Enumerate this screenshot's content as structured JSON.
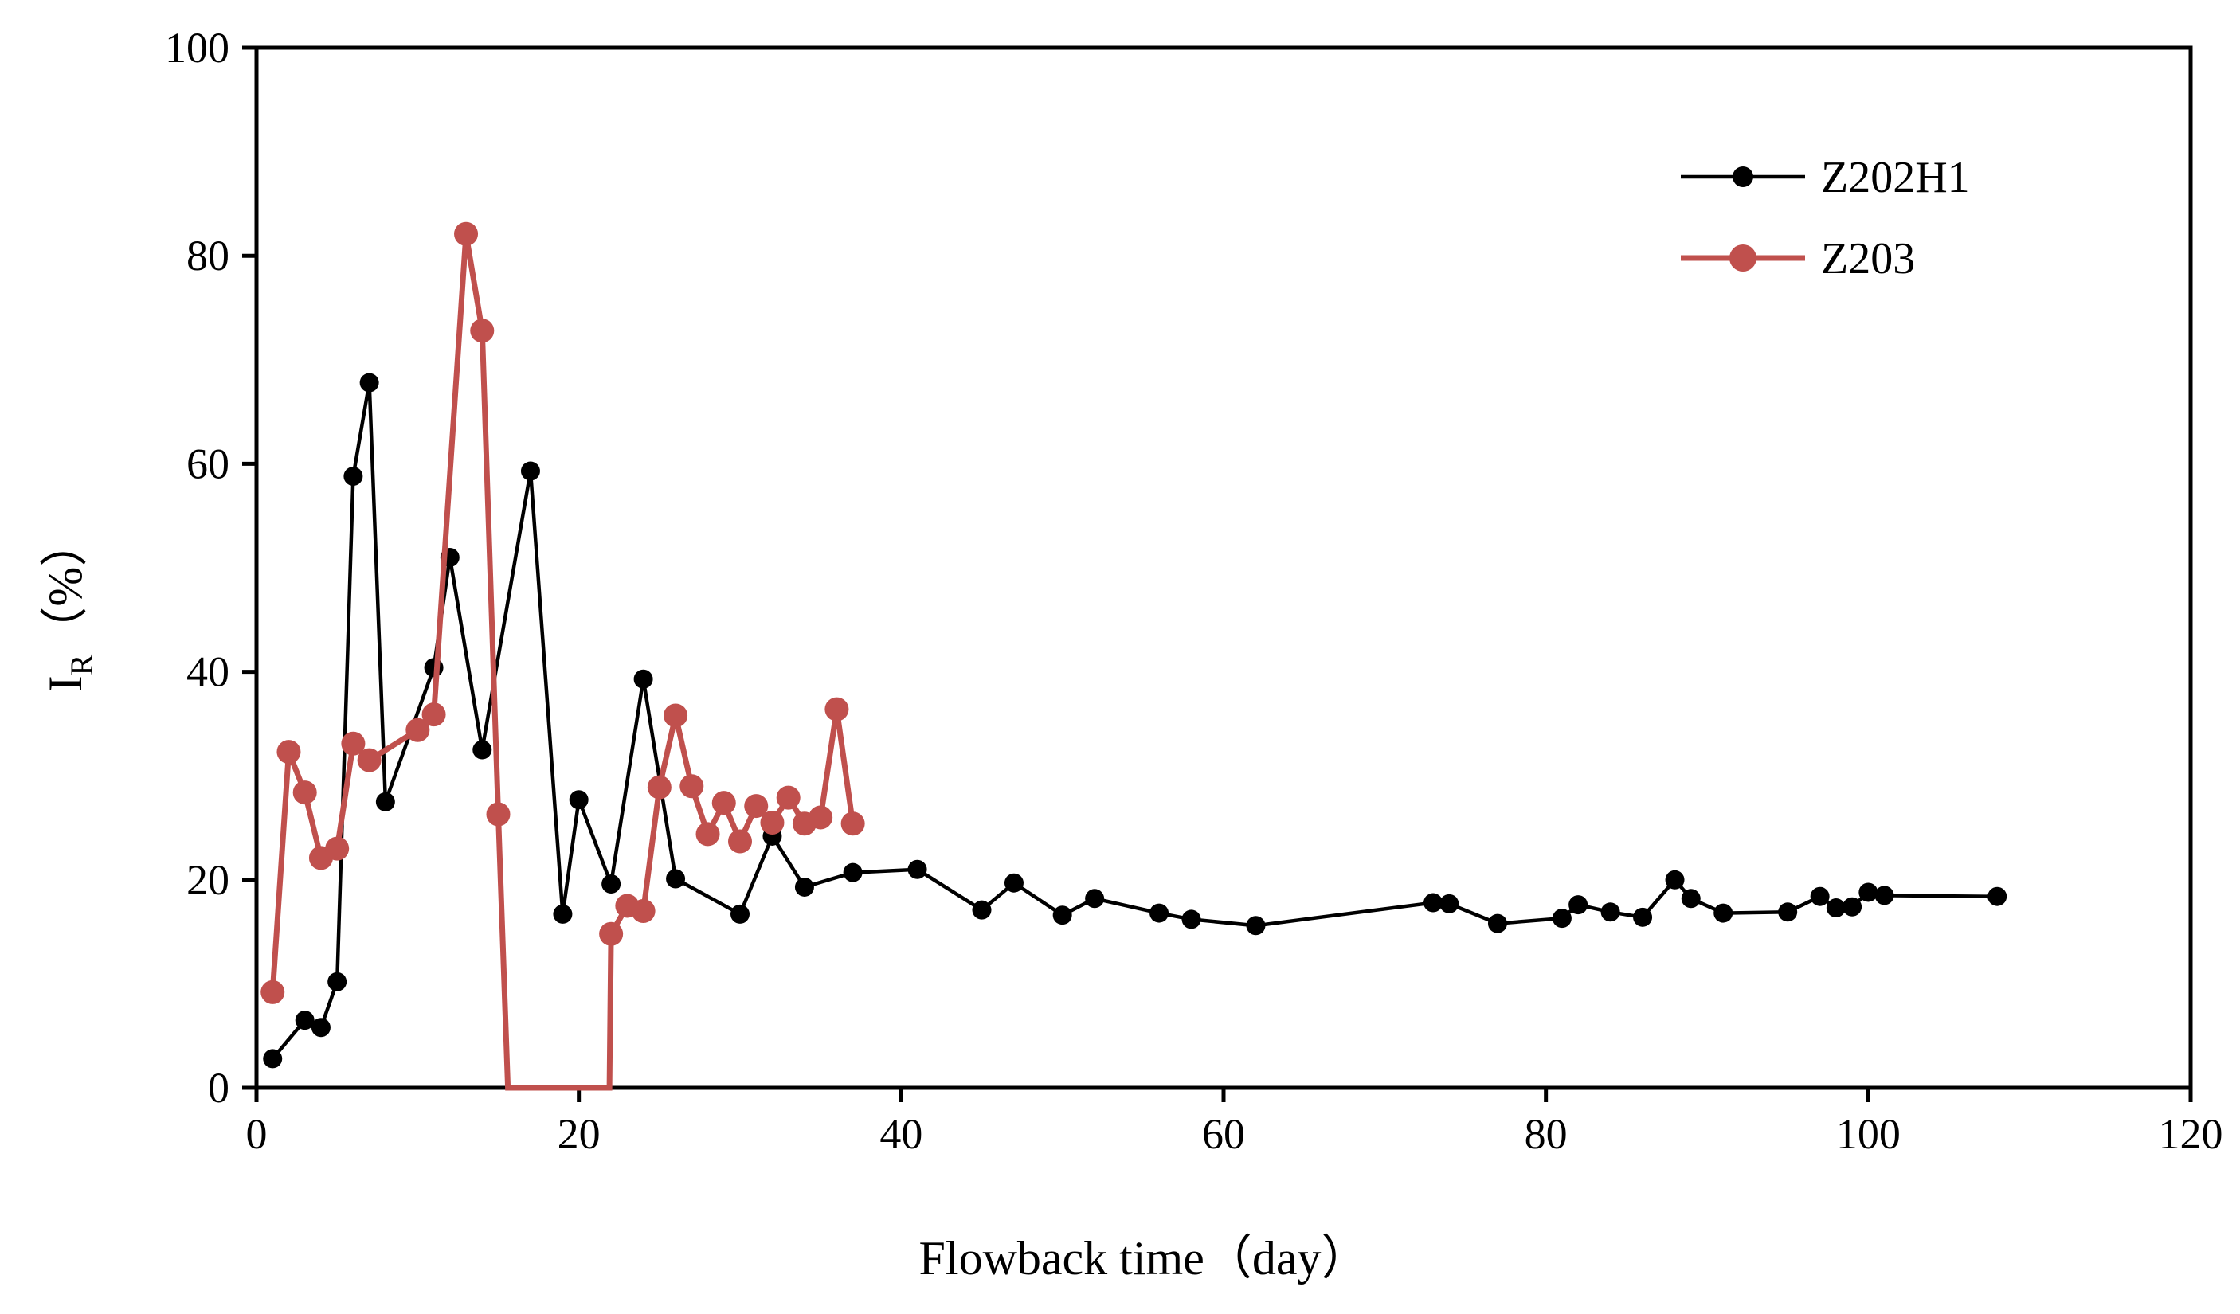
{
  "chart_data": {
    "type": "line",
    "title": "",
    "xlabel": "Flowback time（day）",
    "ylabel_main": "I",
    "ylabel_sub": "R",
    "ylabel_unit": "（%）",
    "xlim": [
      0,
      120
    ],
    "ylim": [
      0,
      100
    ],
    "xticks": [
      0,
      20,
      40,
      60,
      80,
      100,
      120
    ],
    "yticks": [
      0,
      20,
      40,
      60,
      80,
      100
    ],
    "grid": false,
    "legend_position": "top-right",
    "series": [
      {
        "name": "Z202H1",
        "color": "#000000",
        "marker": "circle-small",
        "x": [
          1,
          3,
          4,
          5,
          6,
          7,
          8,
          11,
          12,
          14,
          17,
          19,
          20,
          22,
          24,
          26,
          30,
          32,
          34,
          37,
          41,
          45,
          47,
          50,
          52,
          56,
          58,
          62,
          73,
          74,
          77,
          81,
          82,
          84,
          86,
          88,
          89,
          91,
          95,
          97,
          98,
          99,
          100,
          101,
          108
        ],
        "y": [
          2.8,
          6.5,
          5.8,
          10.2,
          58.8,
          67.8,
          27.5,
          40.4,
          51.0,
          32.5,
          59.3,
          16.7,
          27.7,
          19.6,
          39.3,
          20.1,
          16.7,
          24.2,
          19.3,
          20.7,
          21.0,
          17.1,
          19.7,
          16.6,
          18.2,
          16.8,
          16.2,
          15.6,
          17.8,
          17.7,
          15.8,
          16.3,
          17.6,
          16.9,
          16.4,
          20.0,
          18.2,
          16.8,
          16.9,
          18.4,
          17.3,
          17.4,
          18.8,
          18.5,
          18.4
        ]
      },
      {
        "name": "Z203",
        "color": "#c0504d",
        "marker": "circle-large",
        "x": [
          1,
          2,
          3,
          4,
          5,
          6,
          7,
          10,
          11,
          13,
          14,
          15,
          15.6,
          21.9,
          22,
          23,
          24,
          25,
          26,
          27,
          28,
          29,
          30,
          31,
          32,
          33,
          34,
          35,
          36,
          37
        ],
        "y": [
          9.2,
          32.3,
          28.4,
          22.1,
          23.0,
          33.1,
          31.5,
          34.4,
          35.9,
          82.1,
          72.8,
          26.3,
          0,
          0,
          14.8,
          17.5,
          17.0,
          28.9,
          35.8,
          29.0,
          24.4,
          27.4,
          23.7,
          27.1,
          25.5,
          27.9,
          25.4,
          26.0,
          36.4,
          25.4
        ],
        "markers_hidden_indices": [
          12,
          13
        ]
      }
    ]
  }
}
